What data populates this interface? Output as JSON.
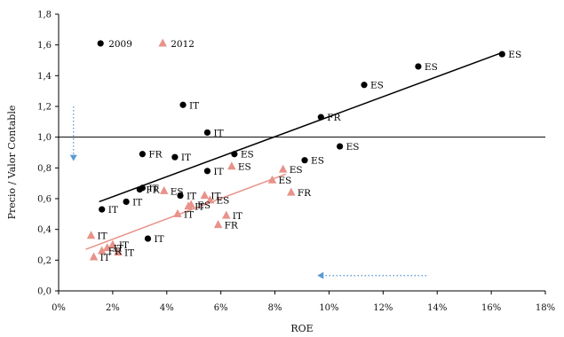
{
  "chart_data": {
    "type": "scatter",
    "xlabel": "ROE",
    "ylabel": "Precio / Valor Contable",
    "xlim": [
      0,
      18
    ],
    "ylim": [
      0,
      1.8
    ],
    "x_ticks": [
      "0%",
      "2%",
      "4%",
      "6%",
      "8%",
      "10%",
      "12%",
      "14%",
      "16%",
      "18%"
    ],
    "y_ticks": [
      "0,0",
      "0,2",
      "0,4",
      "0,6",
      "0,8",
      "1,0",
      "1,2",
      "1,4",
      "1,6",
      "1,8"
    ],
    "reference_line_y": 1.0,
    "series": [
      {
        "name": "2009",
        "marker": "circle",
        "color": "#000000",
        "trend": [
          [
            1.5,
            0.58
          ],
          [
            16.4,
            1.55
          ]
        ],
        "points": [
          {
            "x": 16.4,
            "y": 1.54,
            "label": "ES"
          },
          {
            "x": 13.3,
            "y": 1.46,
            "label": "ES"
          },
          {
            "x": 11.3,
            "y": 1.34,
            "label": "ES"
          },
          {
            "x": 9.7,
            "y": 1.13,
            "label": "FR"
          },
          {
            "x": 10.4,
            "y": 0.94,
            "label": "ES"
          },
          {
            "x": 9.1,
            "y": 0.85,
            "label": "ES"
          },
          {
            "x": 4.6,
            "y": 1.21,
            "label": "IT"
          },
          {
            "x": 5.5,
            "y": 1.03,
            "label": "IT"
          },
          {
            "x": 3.1,
            "y": 0.89,
            "label": "FR"
          },
          {
            "x": 4.3,
            "y": 0.87,
            "label": "IT"
          },
          {
            "x": 6.5,
            "y": 0.89,
            "label": "ES"
          },
          {
            "x": 5.5,
            "y": 0.78,
            "label": "IT"
          },
          {
            "x": 3.0,
            "y": 0.66,
            "label": "FR"
          },
          {
            "x": 3.1,
            "y": 0.67,
            "label": "IT"
          },
          {
            "x": 2.5,
            "y": 0.58,
            "label": "IT"
          },
          {
            "x": 4.5,
            "y": 0.62,
            "label": "IT"
          },
          {
            "x": 1.6,
            "y": 0.53,
            "label": "IT"
          },
          {
            "x": 3.3,
            "y": 0.34,
            "label": "IT"
          }
        ]
      },
      {
        "name": "2012",
        "marker": "triangle",
        "color": "#e8928a",
        "trend": [
          [
            1.0,
            0.27
          ],
          [
            8.4,
            0.76
          ]
        ],
        "points": [
          {
            "x": 8.3,
            "y": 0.79,
            "label": "ES"
          },
          {
            "x": 6.4,
            "y": 0.81,
            "label": "ES"
          },
          {
            "x": 7.9,
            "y": 0.72,
            "label": "ES"
          },
          {
            "x": 8.6,
            "y": 0.64,
            "label": "FR"
          },
          {
            "x": 3.9,
            "y": 0.65,
            "label": "ES"
          },
          {
            "x": 5.4,
            "y": 0.62,
            "label": "IT"
          },
          {
            "x": 5.6,
            "y": 0.59,
            "label": "ES"
          },
          {
            "x": 4.8,
            "y": 0.55,
            "label": "IT"
          },
          {
            "x": 4.9,
            "y": 0.56,
            "label": "ES"
          },
          {
            "x": 4.4,
            "y": 0.5,
            "label": "IT"
          },
          {
            "x": 6.2,
            "y": 0.49,
            "label": "IT"
          },
          {
            "x": 5.9,
            "y": 0.43,
            "label": "FR"
          },
          {
            "x": 1.2,
            "y": 0.36,
            "label": "IT"
          },
          {
            "x": 2.0,
            "y": 0.3,
            "label": "IT"
          },
          {
            "x": 1.8,
            "y": 0.28,
            "label": "IT"
          },
          {
            "x": 2.2,
            "y": 0.25,
            "label": "IT"
          },
          {
            "x": 1.3,
            "y": 0.22,
            "label": "IT"
          },
          {
            "x": 1.6,
            "y": 0.26,
            "label": "FR"
          }
        ]
      }
    ],
    "annotations": [
      {
        "type": "dotted-arrow",
        "direction": "down",
        "color": "#5b9bd5",
        "from": [
          0.55,
          1.2
        ],
        "to": [
          0.55,
          0.85
        ]
      },
      {
        "type": "dotted-arrow",
        "direction": "left",
        "color": "#5b9bd5",
        "from": [
          13.6,
          0.1
        ],
        "to": [
          9.6,
          0.1
        ]
      }
    ],
    "legend": {
      "placement": "top-left"
    },
    "grid": false
  }
}
